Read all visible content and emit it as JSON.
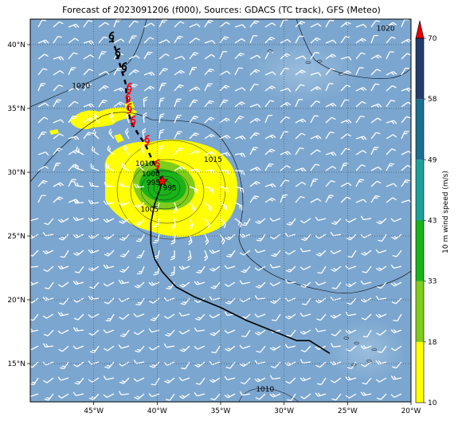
{
  "title": "Forecast of 2023091206 (f000), Sources: GDACS (TC track), GFS (Meteo)",
  "map": {
    "lon_range": [
      -50,
      -20
    ],
    "lat_range": [
      12,
      42
    ],
    "lon_ticks": [
      {
        "value": -45,
        "label": "45°W"
      },
      {
        "value": -40,
        "label": "40°W"
      },
      {
        "value": -35,
        "label": "35°W"
      },
      {
        "value": -30,
        "label": "30°W"
      },
      {
        "value": -25,
        "label": "25°W"
      },
      {
        "value": -20,
        "label": "20°W"
      }
    ],
    "lat_ticks": [
      {
        "value": 15,
        "label": "15°N"
      },
      {
        "value": 20,
        "label": "20°N"
      },
      {
        "value": 25,
        "label": "25°N"
      },
      {
        "value": 30,
        "label": "30°N"
      },
      {
        "value": 35,
        "label": "35°N"
      },
      {
        "value": 40,
        "label": "40°N"
      }
    ],
    "ocean_color": "#7ba6cf",
    "storm_center": {
      "lon": -39.6,
      "lat": 29.3
    },
    "observed_track": [
      [
        -26.4,
        15.8
      ],
      [
        -28.0,
        16.8
      ],
      [
        -29.0,
        16.8
      ],
      [
        -31.0,
        17.6
      ],
      [
        -33.0,
        18.4
      ],
      [
        -35.0,
        19.4
      ],
      [
        -37.0,
        20.2
      ],
      [
        -38.5,
        21.0
      ],
      [
        -39.6,
        22.2
      ],
      [
        -40.2,
        23.2
      ],
      [
        -40.5,
        24.4
      ],
      [
        -40.5,
        26.0
      ],
      [
        -40.2,
        27.5
      ],
      [
        -39.8,
        28.6
      ],
      [
        -39.6,
        29.3
      ]
    ],
    "forecast_track": [
      [
        -39.6,
        29.3
      ],
      [
        -40.1,
        30.4
      ],
      [
        -40.5,
        31.2
      ],
      [
        -40.9,
        32.1
      ],
      [
        -41.5,
        33.0
      ],
      [
        -42.1,
        34.0
      ],
      [
        -42.3,
        35.0
      ],
      [
        -42.4,
        36.0
      ],
      [
        -42.5,
        37.0
      ],
      [
        -42.8,
        38.0
      ],
      [
        -43.1,
        39.0
      ],
      [
        -43.3,
        39.7
      ],
      [
        -43.5,
        40.3
      ]
    ],
    "forecast_points": [
      {
        "lon": -40.0,
        "lat": 30.6,
        "color": "#ff0000"
      },
      {
        "lon": -40.8,
        "lat": 32.5,
        "color": "#ff0000"
      },
      {
        "lon": -41.9,
        "lat": 34.0,
        "color": "#ff0000"
      },
      {
        "lon": -42.2,
        "lat": 35.0,
        "color": "#ff0000"
      },
      {
        "lon": -42.3,
        "lat": 35.8,
        "color": "#ff0000"
      },
      {
        "lon": -42.2,
        "lat": 36.6,
        "color": "#ff0000"
      },
      {
        "lon": -42.6,
        "lat": 38.2,
        "color": "#000000"
      },
      {
        "lon": -43.1,
        "lat": 39.3,
        "color": "#000000"
      },
      {
        "lon": -43.6,
        "lat": 40.6,
        "color": "#000000"
      }
    ],
    "isobar_labels": [
      {
        "text": "1020",
        "lon": -46.0,
        "lat": 36.6
      },
      {
        "text": "1020",
        "lon": -22.0,
        "lat": 41.1
      },
      {
        "text": "1015",
        "lon": -35.6,
        "lat": 30.8
      },
      {
        "text": "1010",
        "lon": -41.0,
        "lat": 30.5
      },
      {
        "text": "1005",
        "lon": -40.6,
        "lat": 26.9
      },
      {
        "text": "1000",
        "lon": -40.5,
        "lat": 29.7
      },
      {
        "text": "995",
        "lon": -40.3,
        "lat": 29.0
      },
      {
        "text": "995",
        "lon": -39.0,
        "lat": 28.6
      },
      {
        "text": "1010",
        "lon": -31.5,
        "lat": 12.8
      }
    ],
    "islands": [
      {
        "lon": -28.1,
        "lat": 38.6
      },
      {
        "lon": -27.2,
        "lat": 38.7
      },
      {
        "lon": -25.5,
        "lat": 37.7
      },
      {
        "lon": -31.1,
        "lat": 39.5
      },
      {
        "lon": -16.9,
        "lat": 32.7
      },
      {
        "lon": -24.3,
        "lat": 16.6
      },
      {
        "lon": -23.3,
        "lat": 15.2
      },
      {
        "lon": -22.9,
        "lat": 16.1
      },
      {
        "lon": -24.5,
        "lat": 14.9
      },
      {
        "lon": -25.1,
        "lat": 17.0
      }
    ]
  },
  "colorbar": {
    "label": "10 m wind speed (m/s)",
    "ticks": [
      "10",
      "18",
      "33",
      "43",
      "49",
      "58",
      "70"
    ],
    "colors": [
      "#ffff00",
      "#7fcc1a",
      "#18b418",
      "#1aa29a",
      "#1b6f8f",
      "#243c6b"
    ],
    "extend_color": "#e80000"
  }
}
